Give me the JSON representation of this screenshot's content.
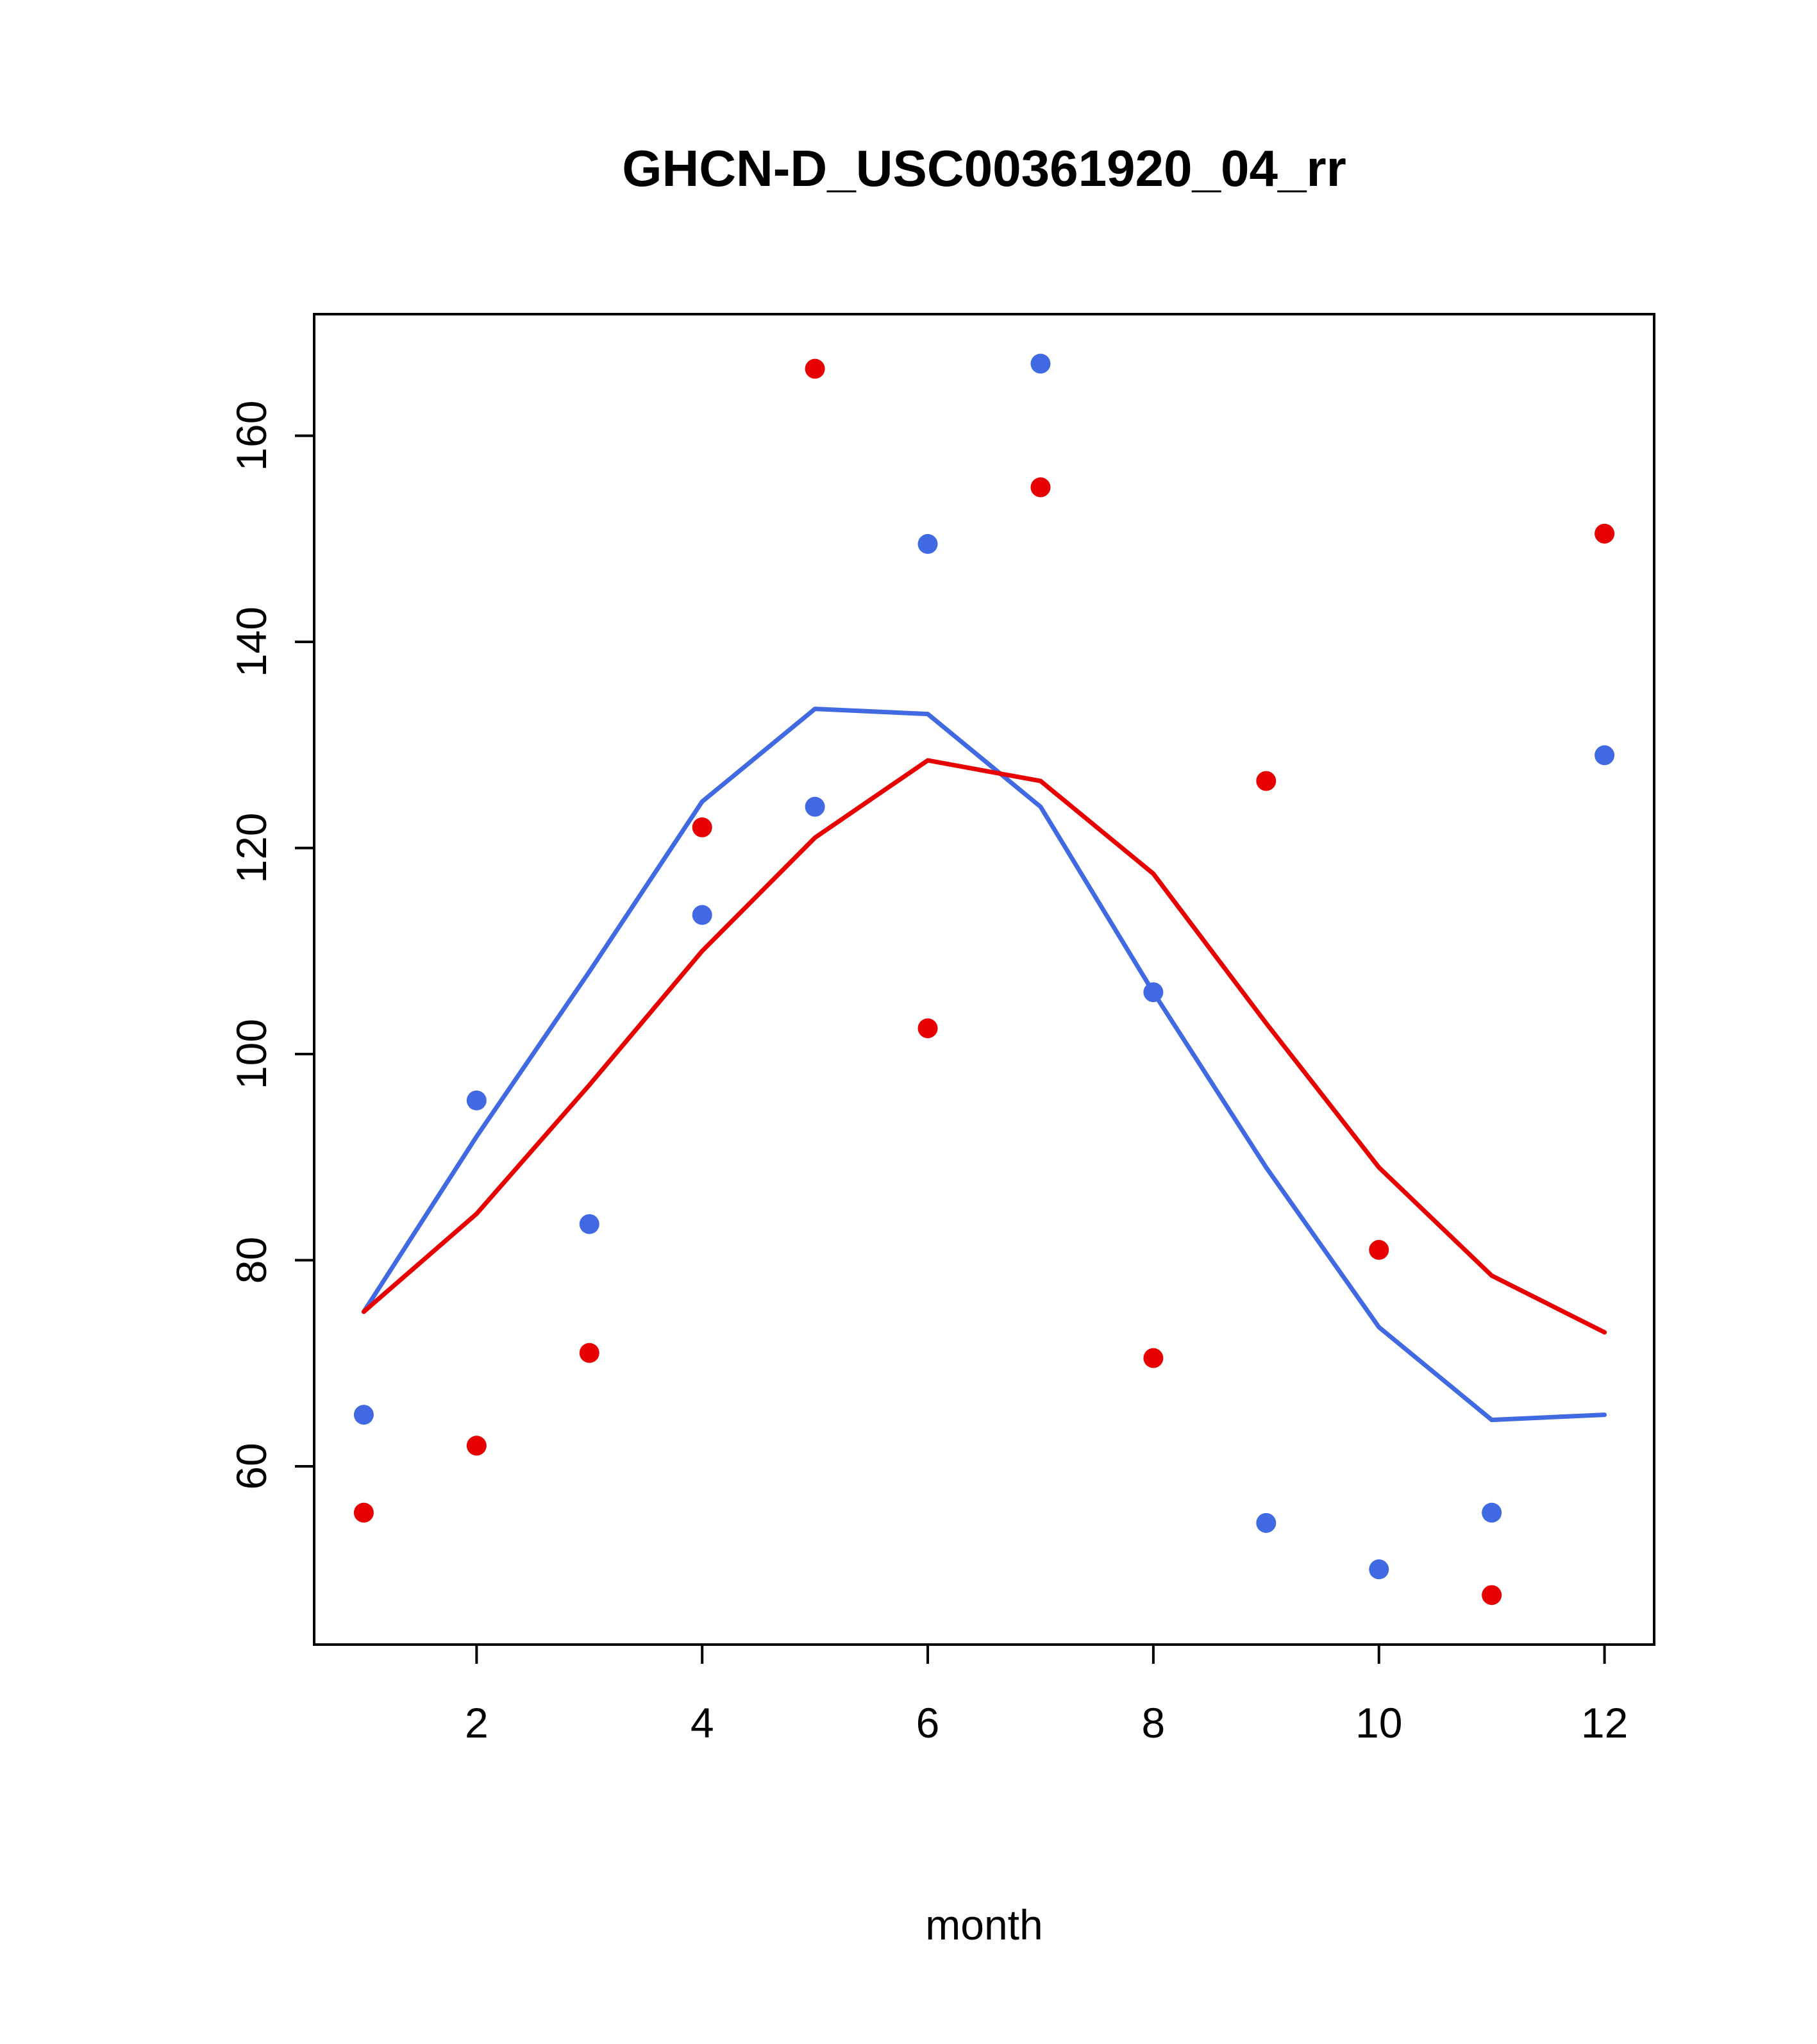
{
  "chart_data": {
    "type": "scatter",
    "title": "GHCN-D_USC00361920_04_rr",
    "xlabel": "month",
    "ylabel": "",
    "x": [
      1,
      2,
      3,
      4,
      5,
      6,
      7,
      8,
      9,
      10,
      11,
      12
    ],
    "xticks": [
      2,
      4,
      6,
      8,
      10,
      12
    ],
    "yticks": [
      60,
      80,
      100,
      120,
      140,
      160
    ],
    "xlim": [
      0.56,
      12.44
    ],
    "ylim": [
      42.7,
      171.8
    ],
    "grid": false,
    "legend": "none",
    "series": [
      {
        "name": "blue-points",
        "kind": "points",
        "color": "#4169e1",
        "values": [
          65,
          95.5,
          83.5,
          113.5,
          124,
          149.5,
          167,
          106,
          54.5,
          50,
          55.5,
          129
        ]
      },
      {
        "name": "red-points",
        "kind": "points",
        "color": "#e60000",
        "values": [
          55.5,
          62,
          71,
          122,
          166.5,
          102.5,
          155,
          70.5,
          126.5,
          81,
          47.5,
          150.5
        ]
      },
      {
        "name": "blue-line",
        "kind": "line",
        "color": "#4169e1",
        "values": [
          75,
          92,
          108,
          124.5,
          133.5,
          133,
          124,
          106,
          89,
          73.5,
          64.5,
          65
        ]
      },
      {
        "name": "red-line",
        "kind": "line",
        "color": "#e60000",
        "values": [
          75,
          84.5,
          97,
          110,
          121,
          128.5,
          126.5,
          117.5,
          103,
          89,
          78.5,
          73
        ]
      }
    ]
  },
  "colors": {
    "blue": "#4169e1",
    "red": "#e60000",
    "axis": "#000000",
    "background": "#ffffff"
  }
}
